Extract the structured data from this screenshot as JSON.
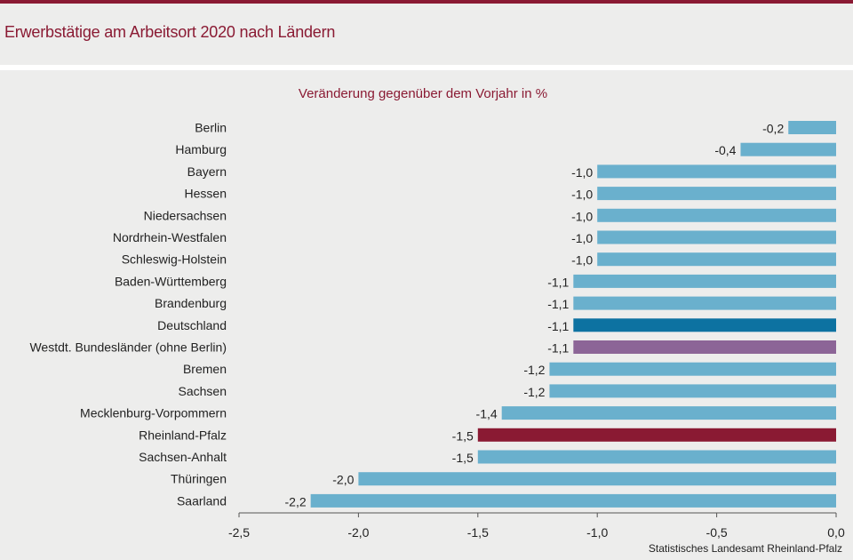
{
  "header": {
    "title": "Erwerbstätige am Arbeitsort 2020 nach Ländern"
  },
  "footer": {
    "source": "Statistisches Landesamt Rheinland-Pfalz"
  },
  "colors": {
    "brand": "#8a1a33",
    "default_bar": "#6ab0cd",
    "deutschland_bar": "#0d72a1",
    "westdt_bar": "#8c6597",
    "rlp_bar": "#8a1a33"
  },
  "chart_data": {
    "type": "bar",
    "orientation": "horizontal",
    "title": "Veränderung gegenüber dem Vorjahr in %",
    "xlim": [
      -2.5,
      0.0
    ],
    "xticks": [
      "-2,5",
      "-2,0",
      "-1,5",
      "-1,0",
      "-0,5",
      "0,0"
    ],
    "xtick_values": [
      -2.5,
      -2.0,
      -1.5,
      -1.0,
      -0.5,
      0.0
    ],
    "grid": false,
    "categories": [
      "Berlin",
      "Hamburg",
      "Bayern",
      "Hessen",
      "Niedersachsen",
      "Nordrhein-Westfalen",
      "Schleswig-Holstein",
      "Baden-Württemberg",
      "Brandenburg",
      "Deutschland",
      "Westdt. Bundesländer (ohne Berlin)",
      "Bremen",
      "Sachsen",
      "Mecklenburg-Vorpommern",
      "Rheinland-Pfalz",
      "Sachsen-Anhalt",
      "Thüringen",
      "Saarland"
    ],
    "values": [
      -0.2,
      -0.4,
      -1.0,
      -1.0,
      -1.0,
      -1.0,
      -1.0,
      -1.1,
      -1.1,
      -1.1,
      -1.1,
      -1.2,
      -1.2,
      -1.4,
      -1.5,
      -1.5,
      -2.0,
      -2.2
    ],
    "value_labels": [
      "-0,2",
      "-0,4",
      "-1,0",
      "-1,0",
      "-1,0",
      "-1,0",
      "-1,0",
      "-1,1",
      "-1,1",
      "-1,1",
      "-1,1",
      "-1,2",
      "-1,2",
      "-1,4",
      "-1,5",
      "-1,5",
      "-2,0",
      "-2,2"
    ],
    "highlights": {
      "Deutschland": "deutschland_bar",
      "Westdt. Bundesländer (ohne Berlin)": "westdt_bar",
      "Rheinland-Pfalz": "rlp_bar"
    }
  }
}
